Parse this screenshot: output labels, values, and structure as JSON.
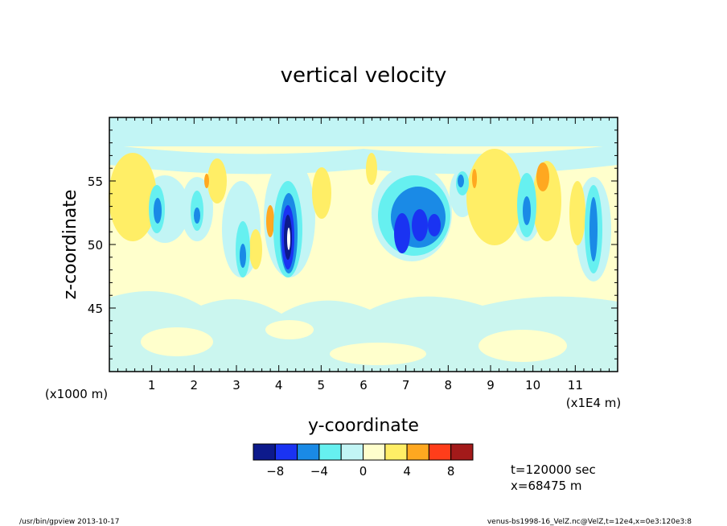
{
  "chart_data": {
    "type": "heatmap",
    "title": "vertical velocity",
    "xlabel": "y-coordinate",
    "ylabel": "z-coordinate",
    "x_scale_label": "(x1E4 m)",
    "y_scale_label": "(x1000 m)",
    "xlim": [
      0,
      12
    ],
    "ylim": [
      40,
      60
    ],
    "x_ticks": [
      "1",
      "2",
      "3",
      "4",
      "5",
      "6",
      "7",
      "8",
      "9",
      "10",
      "11"
    ],
    "y_ticks": [
      "45",
      "50",
      "55"
    ],
    "colorbar": {
      "colors": [
        "#0d1a8c",
        "#1a33f2",
        "#1a8ae6",
        "#66f0f0",
        "#c2f5f5",
        "#ffffcc",
        "#ffee66",
        "#ffa820",
        "#ff3d1a",
        "#a31a1a"
      ],
      "tick_labels": [
        "−8",
        "−4",
        "0",
        "4",
        "8"
      ]
    },
    "annotation": [
      "t=120000 sec",
      "x=68475 m"
    ],
    "features": [
      {
        "y": 0.8,
        "z": 53,
        "value": 3
      },
      {
        "y": 1.1,
        "z": 52,
        "value": -6
      },
      {
        "y": 2.3,
        "z": 55,
        "value": 5
      },
      {
        "y": 2.2,
        "z": 52,
        "value": -5
      },
      {
        "y": 3.1,
        "z": 49,
        "value": -6
      },
      {
        "y": 3.8,
        "z": 52,
        "value": 5
      },
      {
        "y": 4.2,
        "z": 50,
        "value": -9
      },
      {
        "y": 4.25,
        "z": 50.5,
        "value": -12
      },
      {
        "y": 7.3,
        "z": 51,
        "value": -7
      },
      {
        "y": 8.5,
        "z": 55,
        "value": 5
      },
      {
        "y": 10.2,
        "z": 55.5,
        "value": 6
      },
      {
        "y": 9.9,
        "z": 52,
        "value": -6
      },
      {
        "y": 11.3,
        "z": 49,
        "value": -6
      }
    ]
  },
  "footer": {
    "left": "/usr/bin/gpview   2013-10-17",
    "right": "venus-bs1998-16_VelZ.nc@VelZ,t=12e4,x=0e3:120e3:8"
  }
}
